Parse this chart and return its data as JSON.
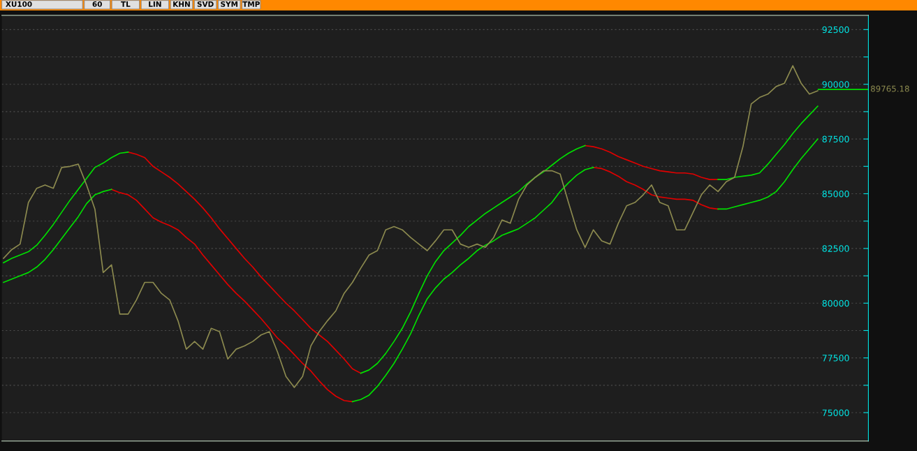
{
  "chart_data": {
    "type": "line",
    "annotations": [
      "XU100",
      "60",
      "TL",
      "LIN",
      "KHN",
      "SVD",
      "SYM",
      "TMP"
    ],
    "categories": [
      null,
      null,
      null,
      null,
      null,
      null,
      null,
      null,
      null,
      null,
      null,
      null,
      null,
      null,
      null,
      null,
      null,
      null,
      null,
      null,
      null,
      null,
      null,
      null,
      null,
      null,
      null,
      null,
      null,
      null,
      null,
      null,
      null,
      null,
      null,
      null,
      null,
      null,
      null,
      null,
      null,
      null,
      null,
      null,
      null,
      null,
      null,
      null,
      null,
      null,
      null,
      null,
      null,
      null,
      null,
      null,
      null,
      null,
      null,
      null,
      null,
      null,
      null,
      null,
      null,
      null,
      null,
      null,
      null,
      null,
      null,
      null,
      null,
      null,
      null,
      null,
      null,
      null,
      null,
      null,
      null,
      null,
      null,
      null,
      null,
      null,
      null,
      null,
      null,
      null,
      null,
      null,
      null,
      null,
      null,
      null,
      null,
      null,
      null
    ],
    "series": [
      {
        "color": "#8c8a4f",
        "values": [
          82050,
          82450,
          82700,
          84600,
          85250,
          85400,
          85250,
          86200,
          86250,
          86350,
          85400,
          84300,
          81400,
          81750,
          79500,
          79500,
          80150,
          80950,
          80950,
          80450,
          80150,
          79200,
          77900,
          78250,
          77900,
          78850,
          78700,
          77450,
          77900,
          78050,
          78250,
          78550,
          78700,
          77750,
          76650,
          76150,
          76650,
          78050,
          78700,
          79200,
          79650,
          80450,
          80950,
          81600,
          82200,
          82400,
          83350,
          83500,
          83350,
          83000,
          82700,
          82400,
          82850,
          83350,
          83350,
          82700,
          82550,
          82700,
          82550,
          83000,
          83800,
          83650,
          84750,
          85400,
          85750,
          86050,
          86050,
          85900,
          84600,
          83350,
          82550,
          83350,
          82850,
          82700,
          83650,
          84450,
          84600,
          84950,
          85400,
          84600,
          84450,
          83350,
          83350,
          84150,
          84950,
          85400,
          85100,
          85550,
          85750,
          87150,
          89100,
          89400,
          89550,
          89900,
          90050,
          90850,
          90050,
          89550,
          89700
        ]
      },
      {
        "color": "#00e000",
        "values": [
          81850,
          82050,
          82200,
          82350,
          82650,
          83100,
          83600,
          84150,
          84700,
          85200,
          85700,
          86200,
          86400,
          86650,
          86850,
          86900,
          null,
          null,
          null,
          null,
          null,
          null,
          null,
          null,
          null,
          null,
          null,
          null,
          null,
          null,
          null,
          null,
          null,
          null,
          null,
          null,
          null,
          null,
          null,
          null,
          null,
          null,
          null,
          76800,
          76950,
          77250,
          77700,
          78250,
          78850,
          79600,
          80450,
          81250,
          81900,
          82400,
          82750,
          83100,
          83500,
          83800,
          84100,
          84350,
          84600,
          84850,
          85100,
          85450,
          85750,
          86000,
          86300,
          86600,
          86850,
          87050,
          87200,
          null,
          null,
          null,
          null,
          null,
          null,
          null,
          null,
          null,
          null,
          null,
          null,
          null,
          null,
          null,
          85650,
          85650,
          85750,
          85800,
          85850,
          85950,
          86350,
          86800,
          87250,
          87750,
          88200,
          88600,
          89000
        ]
      },
      {
        "color": "#e00000",
        "values": [
          null,
          null,
          null,
          null,
          null,
          null,
          null,
          null,
          null,
          null,
          null,
          null,
          null,
          null,
          null,
          86900,
          86800,
          86650,
          86250,
          86000,
          85750,
          85450,
          85100,
          84750,
          84350,
          83900,
          83400,
          82950,
          82500,
          82050,
          81650,
          81200,
          80800,
          80400,
          80000,
          79650,
          79250,
          78850,
          78550,
          78250,
          77850,
          77450,
          77000,
          76800,
          null,
          null,
          null,
          null,
          null,
          null,
          null,
          null,
          null,
          null,
          null,
          null,
          null,
          null,
          null,
          null,
          null,
          null,
          null,
          null,
          null,
          null,
          null,
          null,
          null,
          null,
          87200,
          87150,
          87050,
          86900,
          86700,
          86550,
          86400,
          86250,
          86150,
          86050,
          86000,
          85950,
          85950,
          85900,
          85750,
          85650,
          85650,
          null,
          null,
          null,
          null,
          null,
          null,
          null,
          null,
          null,
          null,
          null,
          null
        ]
      },
      {
        "color": "#00e000",
        "values": [
          80950,
          81100,
          81250,
          81400,
          81650,
          82000,
          82450,
          82950,
          83450,
          83950,
          84550,
          84950,
          85100,
          85200,
          null,
          null,
          null,
          null,
          null,
          null,
          null,
          null,
          null,
          null,
          null,
          null,
          null,
          null,
          null,
          null,
          null,
          null,
          null,
          null,
          null,
          null,
          null,
          null,
          null,
          null,
          null,
          null,
          75500,
          75600,
          75800,
          76200,
          76700,
          77250,
          77900,
          78600,
          79450,
          80200,
          80700,
          81100,
          81400,
          81750,
          82050,
          82400,
          82650,
          82850,
          83100,
          83250,
          83400,
          83650,
          83900,
          84250,
          84600,
          85100,
          85500,
          85850,
          86100,
          86200,
          null,
          null,
          null,
          null,
          null,
          null,
          null,
          null,
          null,
          null,
          null,
          null,
          null,
          null,
          84300,
          84300,
          84400,
          84500,
          84600,
          84700,
          84850,
          85100,
          85550,
          86100,
          86600,
          87050,
          87500
        ]
      },
      {
        "color": "#e00000",
        "values": [
          null,
          null,
          null,
          null,
          null,
          null,
          null,
          null,
          null,
          null,
          null,
          null,
          null,
          85200,
          85050,
          84950,
          84700,
          84300,
          83900,
          83700,
          83550,
          83350,
          83000,
          82700,
          82200,
          81750,
          81300,
          80850,
          80450,
          80100,
          79700,
          79300,
          78850,
          78400,
          78050,
          77650,
          77250,
          76900,
          76450,
          76050,
          75750,
          75550,
          75500,
          null,
          null,
          null,
          null,
          null,
          null,
          null,
          null,
          null,
          null,
          null,
          null,
          null,
          null,
          null,
          null,
          null,
          null,
          null,
          null,
          null,
          null,
          null,
          null,
          null,
          null,
          null,
          null,
          86200,
          86150,
          86000,
          85800,
          85550,
          85400,
          85200,
          84950,
          84850,
          84800,
          84750,
          84750,
          84700,
          84500,
          84350,
          84300,
          null,
          null,
          null,
          null,
          null,
          null,
          null,
          null,
          null,
          null,
          null,
          null
        ]
      }
    ],
    "ylim": [
      73700,
      93150
    ],
    "yticks": [
      75000,
      {
        "value": 76250,
        "label": null
      },
      77500,
      {
        "value": 78750,
        "label": null
      },
      80000,
      {
        "value": 81250,
        "label": null
      },
      82500,
      {
        "value": 83750,
        "label": null
      },
      85000,
      {
        "value": 86250,
        "label": null
      },
      87500,
      {
        "value": 88750,
        "label": null
      },
      90000,
      {
        "value": 91250,
        "label": null
      },
      92500
    ],
    "ref_lines": [
      {
        "axis": "y",
        "value": 89765.18,
        "label": "89765.18",
        "color": "#00e000"
      }
    ],
    "grid": "y",
    "legend": false,
    "marker": "none",
    "line_style": "solid"
  }
}
